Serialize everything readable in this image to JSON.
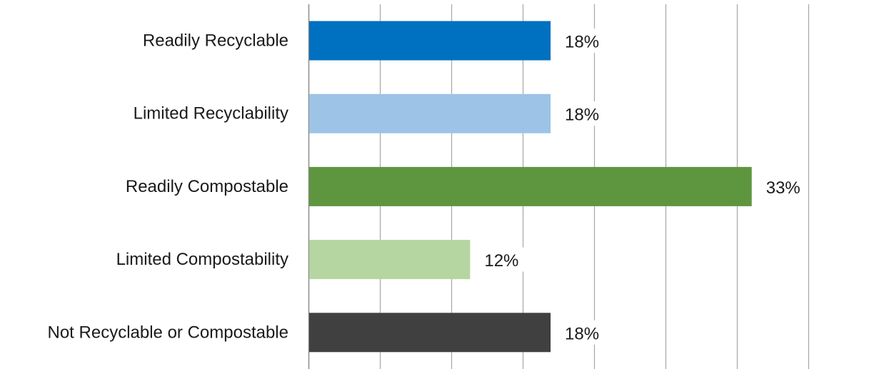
{
  "chart_data": {
    "type": "bar",
    "orientation": "horizontal",
    "title": "",
    "xlabel": "",
    "ylabel": "",
    "categories": [
      "Readily Recyclable",
      "Limited Recyclability",
      "Readily Compostable",
      "Limited Compostability",
      "Not Recyclable or Compostable"
    ],
    "values": [
      18,
      18,
      33,
      12,
      18
    ],
    "value_labels": [
      "18%",
      "18%",
      "33%",
      "12%",
      "18%"
    ],
    "colors": [
      "#0070c0",
      "#9dc3e6",
      "#5e9640",
      "#b5d6a0",
      "#404040"
    ],
    "xlim": [
      0,
      40
    ],
    "value_unit": "%",
    "grid": "vertical",
    "legend": "none"
  }
}
